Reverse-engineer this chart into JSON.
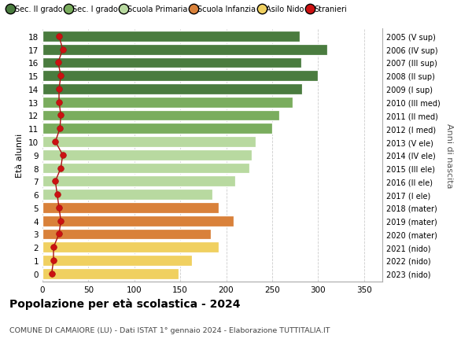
{
  "ages": [
    18,
    17,
    16,
    15,
    14,
    13,
    12,
    11,
    10,
    9,
    8,
    7,
    6,
    5,
    4,
    3,
    2,
    1,
    0
  ],
  "right_labels": [
    "2005 (V sup)",
    "2006 (IV sup)",
    "2007 (III sup)",
    "2008 (II sup)",
    "2009 (I sup)",
    "2010 (III med)",
    "2011 (II med)",
    "2012 (I med)",
    "2013 (V ele)",
    "2014 (IV ele)",
    "2015 (III ele)",
    "2016 (II ele)",
    "2017 (I ele)",
    "2018 (mater)",
    "2019 (mater)",
    "2020 (mater)",
    "2021 (nido)",
    "2022 (nido)",
    "2023 (nido)"
  ],
  "bar_values": [
    280,
    310,
    282,
    300,
    283,
    272,
    258,
    250,
    232,
    228,
    225,
    210,
    185,
    192,
    208,
    183,
    192,
    163,
    148
  ],
  "bar_colors": [
    "#4a7c3f",
    "#4a7c3f",
    "#4a7c3f",
    "#4a7c3f",
    "#4a7c3f",
    "#7aad5e",
    "#7aad5e",
    "#7aad5e",
    "#b8d9a0",
    "#b8d9a0",
    "#b8d9a0",
    "#b8d9a0",
    "#b8d9a0",
    "#d9813a",
    "#d9813a",
    "#d9813a",
    "#f0d060",
    "#f0d060",
    "#f0d060"
  ],
  "stranieri_values": [
    18,
    22,
    17,
    20,
    18,
    18,
    20,
    19,
    14,
    22,
    20,
    14,
    16,
    18,
    20,
    18,
    12,
    12,
    10
  ],
  "legend_labels": [
    "Sec. II grado",
    "Sec. I grado",
    "Scuola Primaria",
    "Scuola Infanzia",
    "Asilo Nido",
    "Stranieri"
  ],
  "legend_colors": [
    "#4a7c3f",
    "#7aad5e",
    "#b8d9a0",
    "#d9813a",
    "#f0d060",
    "#cc1111"
  ],
  "ylabel_left": "Età alunni",
  "ylabel_right": "Anni di nascita",
  "title": "Popolazione per età scolastica - 2024",
  "subtitle": "COMUNE DI CAMAIORE (LU) - Dati ISTAT 1° gennaio 2024 - Elaborazione TUTTITALIA.IT",
  "xlim": [
    0,
    370
  ],
  "xticks": [
    0,
    50,
    100,
    150,
    200,
    250,
    300,
    350
  ],
  "background_color": "#ffffff",
  "grid_color": "#cccccc"
}
